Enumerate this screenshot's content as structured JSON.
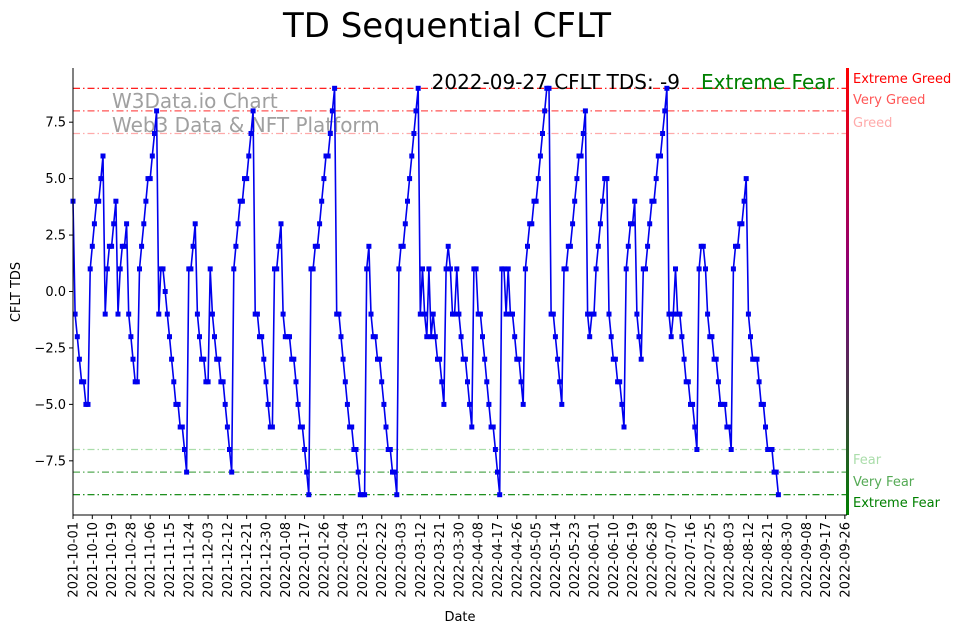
{
  "chart_data": {
    "type": "line",
    "title": "TD Sequential CFLT",
    "xlabel": "Date",
    "ylabel": "CFLT TDS",
    "ylim": [
      -9.9,
      9.9
    ],
    "y_ticks": [
      -7.5,
      -5.0,
      -2.5,
      0.0,
      2.5,
      5.0,
      7.5
    ],
    "y_tick_labels": [
      "−7.5",
      "−5.0",
      "−2.5",
      "0.0",
      "2.5",
      "5.0",
      "7.5"
    ],
    "x_tick_labels": [
      "2021-10-01",
      "2021-10-10",
      "2021-10-19",
      "2021-10-28",
      "2021-11-06",
      "2021-11-15",
      "2021-11-24",
      "2021-12-03",
      "2021-12-12",
      "2021-12-21",
      "2021-12-30",
      "2022-01-08",
      "2022-01-17",
      "2022-01-26",
      "2022-02-04",
      "2022-02-13",
      "2022-02-22",
      "2022-03-03",
      "2022-03-12",
      "2022-03-21",
      "2022-03-30",
      "2022-04-08",
      "2022-04-17",
      "2022-04-26",
      "2022-05-05",
      "2022-05-14",
      "2022-05-23",
      "2022-06-01",
      "2022-06-10",
      "2022-06-19",
      "2022-06-28",
      "2022-07-07",
      "2022-07-16",
      "2022-07-25",
      "2022-08-03",
      "2022-08-12",
      "2022-08-21",
      "2022-08-30",
      "2022-09-08",
      "2022-09-17",
      "2022-09-26"
    ],
    "x_tick_index": [
      0,
      9,
      18,
      27,
      36,
      45,
      54,
      63,
      72,
      81,
      90,
      99,
      108,
      117,
      126,
      135,
      144,
      153,
      162,
      171,
      180,
      189,
      198,
      207,
      216,
      225,
      234,
      243,
      252,
      261,
      270,
      279,
      288,
      297,
      306,
      315,
      324,
      333,
      342,
      351,
      360
    ],
    "x_range": [
      0,
      361
    ],
    "series": [
      {
        "name": "CFLT TDS",
        "color": "#0000ee",
        "values": [
          4,
          -1,
          -2,
          -3,
          -4,
          -4,
          -5,
          -5,
          1,
          2,
          3,
          4,
          4,
          5,
          6,
          -1,
          1,
          2,
          2,
          3,
          4,
          -1,
          1,
          2,
          2,
          3,
          -1,
          -2,
          -3,
          -4,
          -4,
          1,
          2,
          3,
          4,
          5,
          5,
          6,
          7,
          8,
          -1,
          1,
          1,
          0,
          -1,
          -2,
          -3,
          -4,
          -5,
          -5,
          -6,
          -6,
          -7,
          -8,
          1,
          1,
          2,
          3,
          -1,
          -2,
          -3,
          -3,
          -4,
          -4,
          1,
          -1,
          -2,
          -3,
          -3,
          -4,
          -4,
          -5,
          -6,
          -7,
          -8,
          1,
          2,
          3,
          4,
          4,
          5,
          5,
          6,
          7,
          8,
          -1,
          -1,
          -2,
          -2,
          -3,
          -4,
          -5,
          -6,
          -6,
          1,
          1,
          2,
          3,
          -1,
          -2,
          -2,
          -2,
          -3,
          -3,
          -4,
          -5,
          -6,
          -6,
          -7,
          -8,
          -9,
          1,
          1,
          2,
          2,
          3,
          4,
          5,
          6,
          6,
          7,
          8,
          9,
          -1,
          -1,
          -2,
          -3,
          -4,
          -5,
          -6,
          -6,
          -7,
          -7,
          -8,
          -9,
          -9,
          -9,
          1,
          2,
          -1,
          -2,
          -2,
          -3,
          -3,
          -4,
          -5,
          -6,
          -7,
          -7,
          -8,
          -8,
          -9,
          1,
          2,
          2,
          3,
          4,
          5,
          6,
          7,
          8,
          9,
          -1,
          1,
          -1,
          -2,
          1,
          -2,
          -1,
          -2,
          -3,
          -3,
          -4,
          -5,
          1,
          2,
          1,
          -1,
          -1,
          1,
          -1,
          -2,
          -3,
          -3,
          -4,
          -5,
          -6,
          1,
          1,
          -1,
          -1,
          -2,
          -3,
          -4,
          -5,
          -6,
          -6,
          -7,
          -8,
          -9,
          1,
          1,
          -1,
          1,
          -1,
          -1,
          -2,
          -3,
          -3,
          -4,
          -5,
          1,
          2,
          3,
          3,
          4,
          4,
          5,
          6,
          7,
          8,
          9,
          9,
          -1,
          -1,
          -2,
          -3,
          -4,
          -5,
          1,
          1,
          2,
          2,
          3,
          4,
          5,
          6,
          6,
          7,
          8,
          -1,
          -2,
          -1,
          -1,
          1,
          2,
          3,
          4,
          5,
          5,
          -1,
          -2,
          -3,
          -3,
          -4,
          -4,
          -5,
          -6,
          1,
          2,
          3,
          3,
          4,
          -1,
          -2,
          -3,
          1,
          1,
          2,
          3,
          4,
          4,
          5,
          6,
          6,
          7,
          8,
          9,
          -1,
          -2,
          -1,
          1,
          -1,
          -1,
          -2,
          -3,
          -4,
          -4,
          -5,
          -5,
          -6,
          -7,
          1,
          2,
          2,
          1,
          -1,
          -2,
          -2,
          -3,
          -3,
          -4,
          -5,
          -5,
          -5,
          -6,
          -6,
          -7,
          1,
          2,
          2,
          3,
          3,
          4,
          5,
          -1,
          -2,
          -3,
          -3,
          -3,
          -4,
          -5,
          -5,
          -6,
          -7,
          -7,
          -7,
          -8,
          -8,
          -9
        ]
      }
    ],
    "annotation": {
      "text": "2022-09-27 CFLT TDS: -9",
      "state": "Extreme Fear",
      "state_color": "#008000"
    },
    "watermark": [
      "W3Data.io Chart",
      "Web3 Data & NFT Platform"
    ],
    "levels": [
      {
        "value": 9,
        "label": "Extreme Greed",
        "color": "#ff0000"
      },
      {
        "value": 8,
        "label": "Very Greed",
        "color": "#ff5555"
      },
      {
        "value": 7,
        "label": "Greed",
        "color": "#ffaaaa"
      },
      {
        "value": -7,
        "label": "Fear",
        "color": "#aaddaa"
      },
      {
        "value": -8,
        "label": "Very Fear",
        "color": "#55aa55"
      },
      {
        "value": -9,
        "label": "Extreme Fear",
        "color": "#008000"
      }
    ]
  }
}
